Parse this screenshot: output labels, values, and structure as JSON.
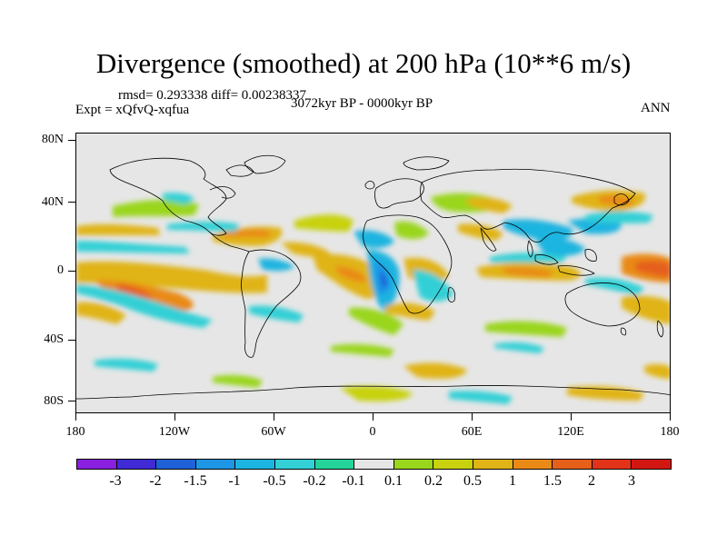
{
  "title": "Divergence (smoothed) at 200 hPa (10**6 m/s)",
  "stats": {
    "rmsd": "rmsd= 0.293338 diff= 0.00238337"
  },
  "expt": "Expt = xQfvQ-xqfua",
  "period": "3072kyr BP - 0000kyr BP",
  "season": "ANN",
  "y_ticks": [
    "80N",
    "40N",
    "0",
    "40S",
    "80S"
  ],
  "x_ticks": [
    "180",
    "120W",
    "60W",
    "0",
    "60E",
    "120E",
    "180"
  ],
  "colorbar": {
    "labels": [
      "-3",
      "-2",
      "-1.5",
      "-1",
      "-0.5",
      "-0.2",
      "-0.1",
      "0.1",
      "0.2",
      "0.5",
      "1",
      "1.5",
      "2",
      "3"
    ],
    "colors": [
      "#8a1fe0",
      "#3f2ad6",
      "#1f62d8",
      "#1e96e6",
      "#1cb4e0",
      "#33d0d6",
      "#24d49a",
      "#e6e6e6",
      "#9ad61c",
      "#c8d20e",
      "#e0b416",
      "#e98a16",
      "#e5601a",
      "#e23318",
      "#d21712"
    ]
  },
  "map": {
    "background_color": "#e6e6e6",
    "coastline_color": "#000000"
  }
}
